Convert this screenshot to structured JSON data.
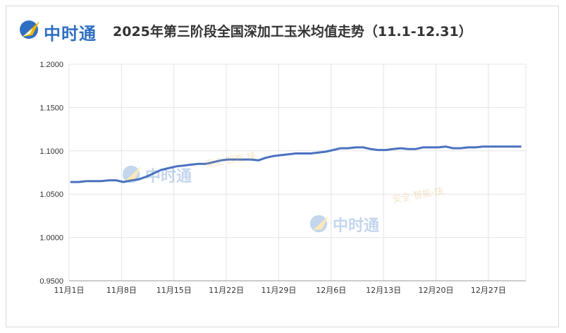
{
  "header": {
    "logo_text": "中时通",
    "title": "2025年第三阶段全国深加工玉米均值走势（11.1-12.31）"
  },
  "watermark": {
    "brand": "中时通",
    "slogan": "安全·智能·快"
  },
  "colors": {
    "line": "#4a72c0",
    "grid": "#e4e4e4",
    "axis_text": "#333333",
    "brand": "#2f6fc4"
  },
  "chart_data": {
    "type": "line",
    "title": "2025年第三阶段全国深加工玉米均值走势（11.1-12.31）",
    "xlabel": "",
    "ylabel": "",
    "ylim": [
      0.95,
      1.2
    ],
    "y_ticks": [
      "1.2000",
      "1.1500",
      "1.1000",
      "1.0500",
      "1.0000",
      "0.9500"
    ],
    "x_ticks": [
      "11月1日",
      "11月8日",
      "11月15日",
      "11月22日",
      "11月29日",
      "12月6日",
      "12月13日",
      "12月20日",
      "12月27日"
    ],
    "grid": true,
    "legend": "none",
    "series": [
      {
        "x": [
          "11月1日",
          "11月2日",
          "11月3日",
          "11月4日",
          "11月5日",
          "11月6日",
          "11月7日",
          "11月8日",
          "11月9日",
          "11月10日",
          "11月11日",
          "11月12日",
          "11月13日",
          "11月14日",
          "11月15日",
          "11月16日",
          "11月17日",
          "11月18日",
          "11月19日",
          "11月20日",
          "11月21日",
          "11月22日",
          "11月23日",
          "11月24日",
          "11月25日",
          "11月26日",
          "11月27日",
          "11月28日",
          "11月29日",
          "11月30日",
          "12月1日",
          "12月2日",
          "12月3日",
          "12月4日",
          "12月5日",
          "12月6日",
          "12月7日",
          "12月8日",
          "12月9日",
          "12月10日",
          "12月11日",
          "12月12日",
          "12月13日",
          "12月14日",
          "12月15日",
          "12月16日",
          "12月17日",
          "12月18日",
          "12月19日",
          "12月20日",
          "12月21日",
          "12月22日",
          "12月23日",
          "12月24日",
          "12月25日",
          "12月26日",
          "12月27日",
          "12月28日",
          "12月29日",
          "12月30日",
          "12月31日"
        ],
        "values": [
          1.064,
          1.064,
          1.065,
          1.065,
          1.065,
          1.066,
          1.066,
          1.064,
          1.066,
          1.067,
          1.07,
          1.074,
          1.078,
          1.08,
          1.082,
          1.083,
          1.084,
          1.085,
          1.085,
          1.087,
          1.089,
          1.09,
          1.09,
          1.09,
          1.09,
          1.089,
          1.092,
          1.094,
          1.095,
          1.096,
          1.097,
          1.097,
          1.097,
          1.098,
          1.099,
          1.101,
          1.103,
          1.103,
          1.104,
          1.104,
          1.102,
          1.101,
          1.101,
          1.102,
          1.103,
          1.102,
          1.102,
          1.104,
          1.104,
          1.104,
          1.105,
          1.103,
          1.103,
          1.104,
          1.104,
          1.105,
          1.105,
          1.105,
          1.105,
          1.105,
          1.105
        ]
      }
    ]
  }
}
